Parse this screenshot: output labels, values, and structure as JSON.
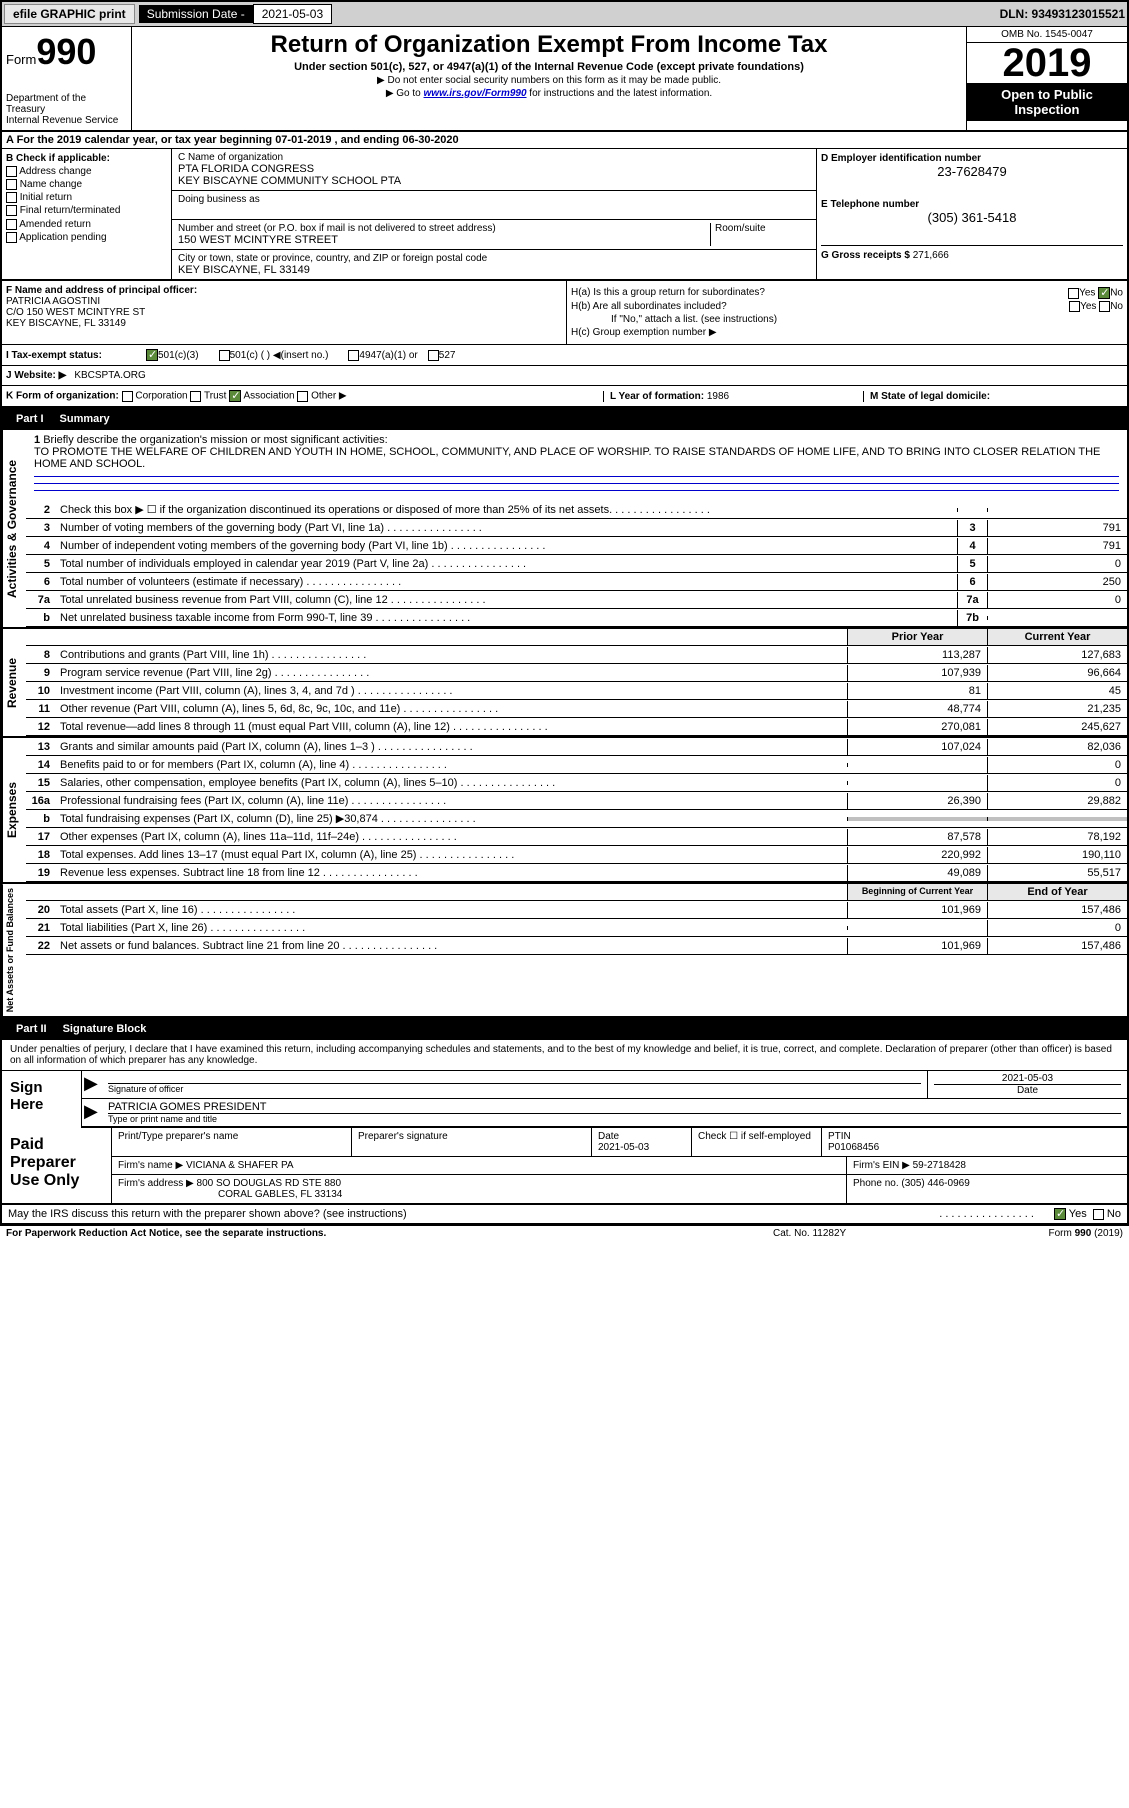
{
  "top": {
    "efile": "efile GRAPHIC print",
    "sub_label": "Submission Date - ",
    "sub_date": "2021-05-03",
    "dln": "DLN: 93493123015521"
  },
  "header": {
    "form": "Form",
    "num": "990",
    "dept": "Department of the Treasury\nInternal Revenue Service",
    "title": "Return of Organization Exempt From Income Tax",
    "sub": "Under section 501(c), 527, or 4947(a)(1) of the Internal Revenue Code (except private foundations)",
    "arrow1": "▶ Do not enter social security numbers on this form as it may be made public.",
    "arrow2_pre": "▶ Go to ",
    "arrow2_link": "www.irs.gov/Form990",
    "arrow2_post": " for instructions and the latest information.",
    "omb": "OMB No. 1545-0047",
    "year": "2019",
    "open": "Open to Public Inspection"
  },
  "rowA": "A For the 2019 calendar year, or tax year beginning 07-01-2019    , and ending 06-30-2020",
  "colB": {
    "hdr": "B Check if applicable:",
    "items": [
      "Address change",
      "Name change",
      "Initial return",
      "Final return/terminated",
      "Amended return",
      "Application pending"
    ]
  },
  "colC": {
    "name_lbl": "C Name of organization",
    "name1": "PTA FLORIDA CONGRESS",
    "name2": "KEY BISCAYNE COMMUNITY SCHOOL PTA",
    "dba_lbl": "Doing business as",
    "addr_lbl": "Number and street (or P.O. box if mail is not delivered to street address)",
    "room_lbl": "Room/suite",
    "addr": "150 WEST MCINTYRE STREET",
    "city_lbl": "City or town, state or province, country, and ZIP or foreign postal code",
    "city": "KEY BISCAYNE, FL  33149",
    "officer_lbl": "F Name and address of principal officer:",
    "officer_name": "PATRICIA AGOSTINI",
    "officer_addr1": "C/O 150 WEST MCINTYRE ST",
    "officer_addr2": "KEY BISCAYNE, FL  33149"
  },
  "colD": {
    "ein_lbl": "D Employer identification number",
    "ein": "23-7628479",
    "tel_lbl": "E Telephone number",
    "tel": "(305) 361-5418",
    "gross_lbl": "G Gross receipts $ ",
    "gross": "271,666"
  },
  "rowH": {
    "ha": "H(a)  Is this a group return for subordinates?",
    "hb": "H(b)  Are all subordinates included?",
    "hb_note": "If \"No,\" attach a list. (see instructions)",
    "hc": "H(c)  Group exemption number ▶"
  },
  "rowI": {
    "lbl": "I  Tax-exempt status:",
    "opt1": "501(c)(3)",
    "opt2": "501(c) (  ) ◀(insert no.)",
    "opt3": "4947(a)(1) or",
    "opt4": "527"
  },
  "rowJ": {
    "lbl": "J   Website: ▶",
    "val": "KBCSPTA.ORG"
  },
  "rowK": {
    "lbl": "K Form of organization:",
    "opts": [
      "Corporation",
      "Trust",
      "Association",
      "Other ▶"
    ],
    "l_lbl": "L Year of formation: ",
    "l_val": "1986",
    "m_lbl": "M State of legal domicile:"
  },
  "part1": {
    "num": "Part I",
    "title": "Summary"
  },
  "briefly": {
    "num": "1",
    "lbl": "Briefly describe the organization's mission or most significant activities:",
    "txt": "TO PROMOTE THE WELFARE OF CHILDREN AND YOUTH IN HOME, SCHOOL, COMMUNITY, AND PLACE OF WORSHIP. TO RAISE STANDARDS OF HOME LIFE, AND TO BRING INTO CLOSER RELATION THE HOME AND SCHOOL."
  },
  "gov_lines": [
    {
      "n": "2",
      "d": "Check this box ▶ ☐  if the organization discontinued its operations or disposed of more than 25% of its net assets.",
      "b": "",
      "v": ""
    },
    {
      "n": "3",
      "d": "Number of voting members of the governing body (Part VI, line 1a)",
      "b": "3",
      "v": "791"
    },
    {
      "n": "4",
      "d": "Number of independent voting members of the governing body (Part VI, line 1b)",
      "b": "4",
      "v": "791"
    },
    {
      "n": "5",
      "d": "Total number of individuals employed in calendar year 2019 (Part V, line 2a)",
      "b": "5",
      "v": "0"
    },
    {
      "n": "6",
      "d": "Total number of volunteers (estimate if necessary)",
      "b": "6",
      "v": "250"
    },
    {
      "n": "7a",
      "d": "Total unrelated business revenue from Part VIII, column (C), line 12",
      "b": "7a",
      "v": "0"
    },
    {
      "n": "b",
      "d": "Net unrelated business taxable income from Form 990-T, line 39",
      "b": "7b",
      "v": ""
    }
  ],
  "py_cy_hdr": {
    "py": "Prior Year",
    "cy": "Current Year"
  },
  "rev_lines": [
    {
      "n": "8",
      "d": "Contributions and grants (Part VIII, line 1h)",
      "py": "113,287",
      "cy": "127,683"
    },
    {
      "n": "9",
      "d": "Program service revenue (Part VIII, line 2g)",
      "py": "107,939",
      "cy": "96,664"
    },
    {
      "n": "10",
      "d": "Investment income (Part VIII, column (A), lines 3, 4, and 7d )",
      "py": "81",
      "cy": "45"
    },
    {
      "n": "11",
      "d": "Other revenue (Part VIII, column (A), lines 5, 6d, 8c, 9c, 10c, and 11e)",
      "py": "48,774",
      "cy": "21,235"
    },
    {
      "n": "12",
      "d": "Total revenue—add lines 8 through 11 (must equal Part VIII, column (A), line 12)",
      "py": "270,081",
      "cy": "245,627"
    }
  ],
  "exp_lines": [
    {
      "n": "13",
      "d": "Grants and similar amounts paid (Part IX, column (A), lines 1–3 )",
      "py": "107,024",
      "cy": "82,036"
    },
    {
      "n": "14",
      "d": "Benefits paid to or for members (Part IX, column (A), line 4)",
      "py": "",
      "cy": "0"
    },
    {
      "n": "15",
      "d": "Salaries, other compensation, employee benefits (Part IX, column (A), lines 5–10)",
      "py": "",
      "cy": "0"
    },
    {
      "n": "16a",
      "d": "Professional fundraising fees (Part IX, column (A), line 11e)",
      "py": "26,390",
      "cy": "29,882"
    },
    {
      "n": "b",
      "d": "Total fundraising expenses (Part IX, column (D), line 25) ▶30,874",
      "py": "SHADE",
      "cy": "SHADE"
    },
    {
      "n": "17",
      "d": "Other expenses (Part IX, column (A), lines 11a–11d, 11f–24e)",
      "py": "87,578",
      "cy": "78,192"
    },
    {
      "n": "18",
      "d": "Total expenses. Add lines 13–17 (must equal Part IX, column (A), line 25)",
      "py": "220,992",
      "cy": "190,110"
    },
    {
      "n": "19",
      "d": "Revenue less expenses. Subtract line 18 from line 12",
      "py": "49,089",
      "cy": "55,517"
    }
  ],
  "na_hdr": {
    "py": "Beginning of Current Year",
    "cy": "End of Year"
  },
  "na_lines": [
    {
      "n": "20",
      "d": "Total assets (Part X, line 16)",
      "py": "101,969",
      "cy": "157,486"
    },
    {
      "n": "21",
      "d": "Total liabilities (Part X, line 26)",
      "py": "",
      "cy": "0"
    },
    {
      "n": "22",
      "d": "Net assets or fund balances. Subtract line 21 from line 20",
      "py": "101,969",
      "cy": "157,486"
    }
  ],
  "side_labels": {
    "gov": "Activities & Governance",
    "rev": "Revenue",
    "exp": "Expenses",
    "na": "Net Assets or Fund Balances"
  },
  "part2": {
    "num": "Part II",
    "title": "Signature Block"
  },
  "sig": {
    "decl": "Under penalties of perjury, I declare that I have examined this return, including accompanying schedules and statements, and to the best of my knowledge and belief, it is true, correct, and complete. Declaration of preparer (other than officer) is based on all information of which preparer has any knowledge.",
    "here": "Sign Here",
    "sig_lbl": "Signature of officer",
    "date_lbl": "Date",
    "date_val": "2021-05-03",
    "name": "PATRICIA GOMES PRESIDENT",
    "name_lbl": "Type or print name and title"
  },
  "paid": {
    "lbl": "Paid Preparer Use Only",
    "r1": {
      "c1": "Print/Type preparer's name",
      "c2": "Preparer's signature",
      "c3": "Date",
      "c3v": "2021-05-03",
      "c4": "Check ☐ if self-employed",
      "c5": "PTIN",
      "c5v": "P01068456"
    },
    "r2": {
      "c1": "Firm's name     ▶",
      "c1v": "VICIANA & SHAFER PA",
      "c2": "Firm's EIN ▶",
      "c2v": "59-2718428"
    },
    "r3": {
      "c1": "Firm's address ▶",
      "c1v": "800 SO DOUGLAS RD STE 880",
      "c2": "Phone no. ",
      "c2v": "(305) 446-0969"
    },
    "r3b": "CORAL GABLES, FL  33134"
  },
  "discuss": "May the IRS discuss this return with the preparer shown above? (see instructions)",
  "footer": {
    "left": "For Paperwork Reduction Act Notice, see the separate instructions.",
    "mid": "Cat. No. 11282Y",
    "right": "Form 990 (2019)"
  }
}
